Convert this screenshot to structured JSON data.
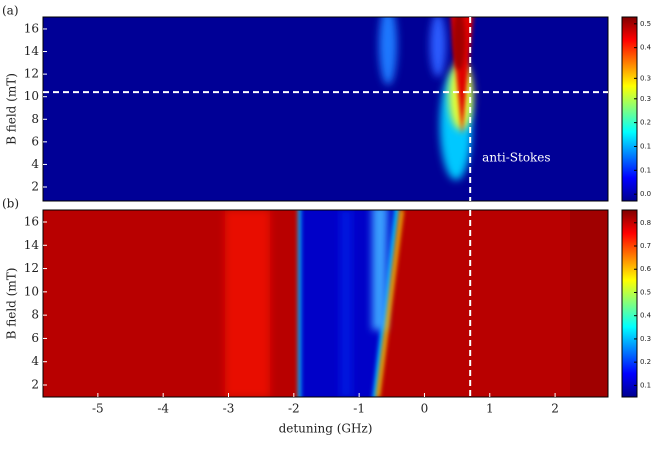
{
  "chart_data": [
    {
      "type": "heatmap",
      "panel_label": "(a)",
      "y_label": "B field (mT)",
      "xlim": [
        -5.84,
        2.81
      ],
      "ylim": [
        0.76,
        17.06
      ],
      "yticks": [
        2,
        4,
        6,
        8,
        10,
        12,
        14,
        16
      ],
      "colorbar": {
        "lim": [
          -0.02,
          0.52
        ],
        "ticks": [
          0.5,
          {
            "value": 0.43,
            "label": "0.4"
          },
          {
            "value": 0.34,
            "label": "0.3"
          },
          {
            "value": 0.28,
            "label": "0.3"
          },
          {
            "value": 0.21,
            "label": "0.2"
          },
          {
            "value": 0.14,
            "label": "0.1"
          },
          {
            "value": 0.07,
            "label": "0.1"
          },
          {
            "value": 0,
            "label": "0.0"
          }
        ]
      },
      "vline": 0.7,
      "hline": 10.4,
      "annotation": "anti-Stokes"
    },
    {
      "type": "heatmap",
      "panel_label": "(b)",
      "y_label": "B field (mT)",
      "x_label": "detuning (GHz)",
      "xlim": [
        -5.84,
        2.81
      ],
      "ylim": [
        0.97,
        17.03
      ],
      "xticks": [
        -5,
        -4,
        -3,
        -2,
        -1,
        0,
        1,
        2
      ],
      "yticks": [
        2,
        4,
        6,
        8,
        10,
        12,
        14,
        16
      ],
      "colorbar": {
        "lim": [
          0.05,
          0.855
        ],
        "ticks": [
          0.8,
          0.7,
          0.6,
          0.5,
          0.4,
          0.3,
          0.2,
          0.1
        ]
      },
      "vline": 0.7
    }
  ]
}
